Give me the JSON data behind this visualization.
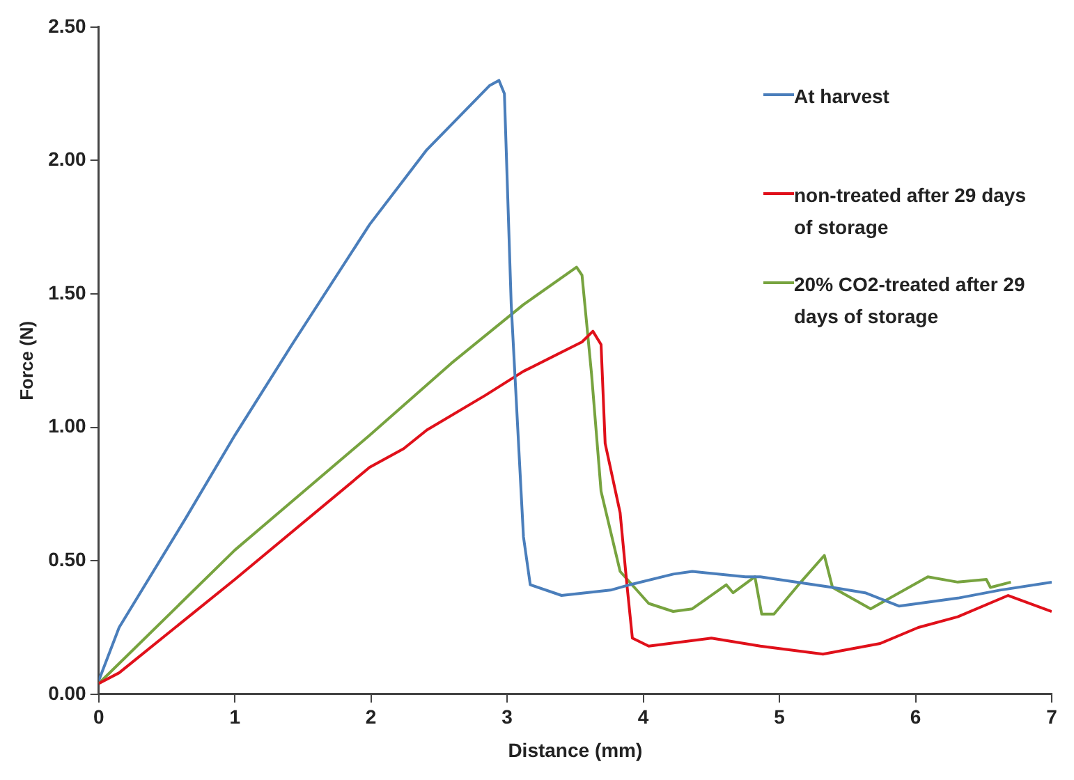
{
  "chart_data": {
    "type": "line",
    "xlabel": "Distance (mm)",
    "ylabel": "Force (N)",
    "xlim": [
      0,
      7
    ],
    "xticks": [
      0,
      1,
      2,
      3,
      4,
      5,
      6,
      7
    ],
    "ylim": [
      0,
      2.5
    ],
    "yticks": [
      {
        "value": 0,
        "label": "0.00"
      },
      {
        "value": 0.5,
        "label": "0.50"
      },
      {
        "value": 1,
        "label": "1.00"
      },
      {
        "value": 1.5,
        "label": "1.50"
      },
      {
        "value": 2,
        "label": "2.00"
      },
      {
        "value": 2.5,
        "label": "2.50"
      }
    ],
    "grid": false,
    "legend": "top right",
    "marker": "none",
    "line_style": "solid",
    "series": [
      {
        "name": "At harvest",
        "color": "#4a7ebb",
        "x": [
          0,
          0.15,
          0.64,
          1.0,
          1.42,
          1.99,
          2.41,
          2.87,
          2.94,
          2.98,
          3.03,
          3.12,
          3.17,
          3.4,
          3.76,
          3.9,
          4.22,
          4.36,
          4.75,
          4.86,
          5.39,
          5.63,
          5.88,
          6.31,
          6.62,
          7.0
        ],
        "values": [
          0.05,
          0.25,
          0.66,
          0.97,
          1.31,
          1.76,
          2.04,
          2.28,
          2.3,
          2.25,
          1.46,
          0.59,
          0.41,
          0.37,
          0.39,
          0.41,
          0.45,
          0.46,
          0.44,
          0.44,
          0.4,
          0.38,
          0.33,
          0.36,
          0.39,
          0.42
        ]
      },
      {
        "name": "non-treated after 29 days of storage",
        "color": "#e0101a",
        "x": [
          0,
          0.15,
          1.0,
          1.99,
          2.24,
          2.41,
          2.84,
          3.12,
          3.55,
          3.63,
          3.69,
          3.72,
          3.83,
          3.88,
          3.92,
          4.04,
          4.5,
          4.86,
          5.32,
          5.74,
          6.02,
          6.31,
          6.68,
          7.0
        ],
        "values": [
          0.04,
          0.08,
          0.43,
          0.85,
          0.92,
          0.99,
          1.12,
          1.21,
          1.32,
          1.36,
          1.31,
          0.94,
          0.68,
          0.41,
          0.21,
          0.18,
          0.21,
          0.18,
          0.15,
          0.19,
          0.25,
          0.29,
          0.37,
          0.31
        ]
      },
      {
        "name": "20% CO2-treated after 29 days of storage",
        "color": "#77a33f",
        "x": [
          0,
          1.0,
          1.99,
          2.59,
          3.12,
          3.51,
          3.55,
          3.62,
          3.69,
          3.83,
          4.04,
          4.22,
          4.36,
          4.61,
          4.66,
          4.82,
          4.87,
          4.96,
          5.14,
          5.33,
          5.39,
          5.67,
          6.09,
          6.31,
          6.52,
          6.55,
          6.7
        ],
        "values": [
          0.04,
          0.54,
          0.97,
          1.24,
          1.46,
          1.6,
          1.57,
          1.2,
          0.76,
          0.46,
          0.34,
          0.31,
          0.32,
          0.41,
          0.38,
          0.44,
          0.3,
          0.3,
          0.41,
          0.52,
          0.4,
          0.32,
          0.44,
          0.42,
          0.43,
          0.4,
          0.42
        ]
      }
    ]
  }
}
